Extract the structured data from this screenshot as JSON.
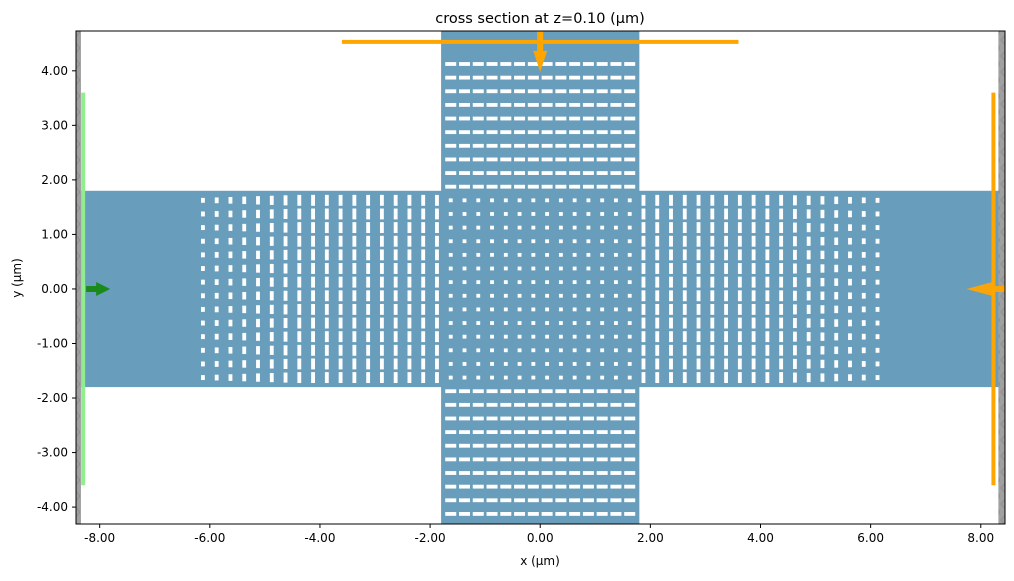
{
  "chart_data": {
    "type": "other",
    "title": "cross section at z=0.10 (µm)",
    "xlabel": "x (µm)",
    "ylabel": "y (µm)",
    "xlim": [
      -8.43,
      8.44
    ],
    "ylim": [
      -4.31,
      4.73
    ],
    "grid": false,
    "xticks": [
      "-8.00",
      "-6.00",
      "-4.00",
      "-2.00",
      "0.00",
      "2.00",
      "4.00",
      "6.00",
      "8.00"
    ],
    "xtick_values": [
      -8,
      -6,
      -4,
      -2,
      0,
      2,
      4,
      6,
      8
    ],
    "yticks": [
      "4.00",
      "3.00",
      "2.00",
      "1.00",
      "0.00",
      "-1.00",
      "-2.00",
      "-3.00",
      "-4.00"
    ],
    "ytick_values": [
      4,
      3,
      2,
      1,
      0,
      -1,
      -2,
      -3,
      -4
    ],
    "structures": {
      "color": "#689dbc",
      "horizontal_waveguide": {
        "x": [
          -8.43,
          8.44
        ],
        "y": [
          -1.8,
          1.8
        ]
      },
      "vertical_waveguide": {
        "x": [
          -1.8,
          1.8
        ],
        "y": [
          -4.31,
          4.73
        ]
      },
      "hole_pitch": 0.25,
      "center_holes": {
        "count_per_axis": 14,
        "size": [
          0.07,
          0.07
        ]
      },
      "horizontal_arm_holes": {
        "columns_per_side": 18,
        "rows": 14,
        "x_range": [
          1.875,
          6.125
        ],
        "width": 0.07,
        "height_near": 0.2,
        "height_far": 0.09,
        "taper_start": 4.375
      },
      "vertical_arm_holes": {
        "rows_per_side": 10,
        "columns": 14,
        "y_range": [
          1.875,
          4.125
        ],
        "width": 0.2,
        "height": 0.07
      }
    },
    "pml": {
      "color": "#a0a0a0",
      "left": [
        -8.43,
        -8.34
      ],
      "right": [
        8.32,
        8.44
      ]
    },
    "source": {
      "color": "#90ee90",
      "arrow_color": "#1a8a1a",
      "x": -8.3,
      "y": [
        -3.6,
        3.6
      ],
      "direction": "+x"
    },
    "monitors": [
      {
        "color": "#ffa500",
        "orientation": "vertical",
        "x": 8.23,
        "y": [
          -3.6,
          3.6
        ],
        "direction": "-x"
      },
      {
        "color": "#ffa500",
        "orientation": "horizontal",
        "y": 4.53,
        "x": [
          -3.6,
          3.6
        ],
        "direction": "-y"
      }
    ]
  }
}
